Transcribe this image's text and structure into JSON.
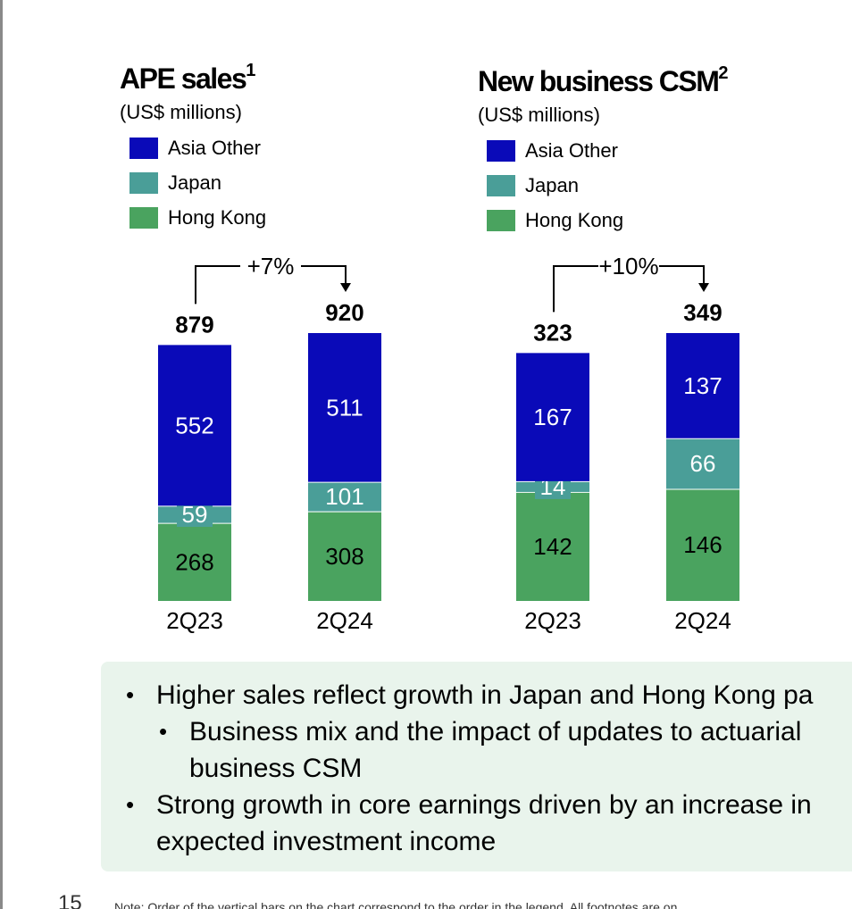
{
  "chart_data": [
    {
      "type": "bar",
      "stacked": true,
      "title": "APE sales",
      "title_footnote": "1",
      "subtitle": "(US$ millions)",
      "categories": [
        "2Q23",
        "2Q24"
      ],
      "series": [
        {
          "name": "Hong Kong",
          "color": "#4aa35f",
          "values": [
            268,
            308
          ],
          "labels": [
            "268",
            "308"
          ]
        },
        {
          "name": "Japan",
          "color": "#4a9e98",
          "values": [
            59,
            101
          ],
          "labels": [
            "59",
            "101"
          ]
        },
        {
          "name": "Asia Other",
          "color": "#0a0ab8",
          "values": [
            552,
            511
          ],
          "labels": [
            "552",
            "511"
          ]
        }
      ],
      "legend": [
        "Asia Other",
        "Japan",
        "Hong Kong"
      ],
      "totals": [
        879,
        920
      ],
      "total_labels": [
        "879",
        "920"
      ],
      "growth_label": "+7%"
    },
    {
      "type": "bar",
      "stacked": true,
      "title": "New business CSM",
      "title_footnote": "2",
      "subtitle": "(US$ millions)",
      "categories": [
        "2Q23",
        "2Q24"
      ],
      "series": [
        {
          "name": "Hong Kong",
          "color": "#4aa35f",
          "values": [
            142,
            146
          ],
          "labels": [
            "142",
            "146"
          ]
        },
        {
          "name": "Japan",
          "color": "#4a9e98",
          "values": [
            14,
            66
          ],
          "labels": [
            "14",
            "66"
          ]
        },
        {
          "name": "Asia Other",
          "color": "#0a0ab8",
          "values": [
            167,
            137
          ],
          "labels": [
            "167",
            "137"
          ]
        }
      ],
      "legend": [
        "Asia Other",
        "Japan",
        "Hong Kong"
      ],
      "totals": [
        323,
        349
      ],
      "total_labels": [
        "323",
        "349"
      ],
      "growth_label": "+10%"
    }
  ],
  "callout": {
    "bullets": [
      {
        "text": "Higher sales reflect growth in Japan and Hong Kong pa"
      },
      {
        "text": "Business mix and the impact of updates to actuarial",
        "continuation": "business CSM"
      },
      {
        "text": "Strong growth in core earnings driven by an increase in",
        "continuation": "expected investment income"
      }
    ]
  },
  "page_number": "15",
  "footnote": "Note: Order of the vertical bars on the chart correspond to the order in the legend. All footnotes are on"
}
